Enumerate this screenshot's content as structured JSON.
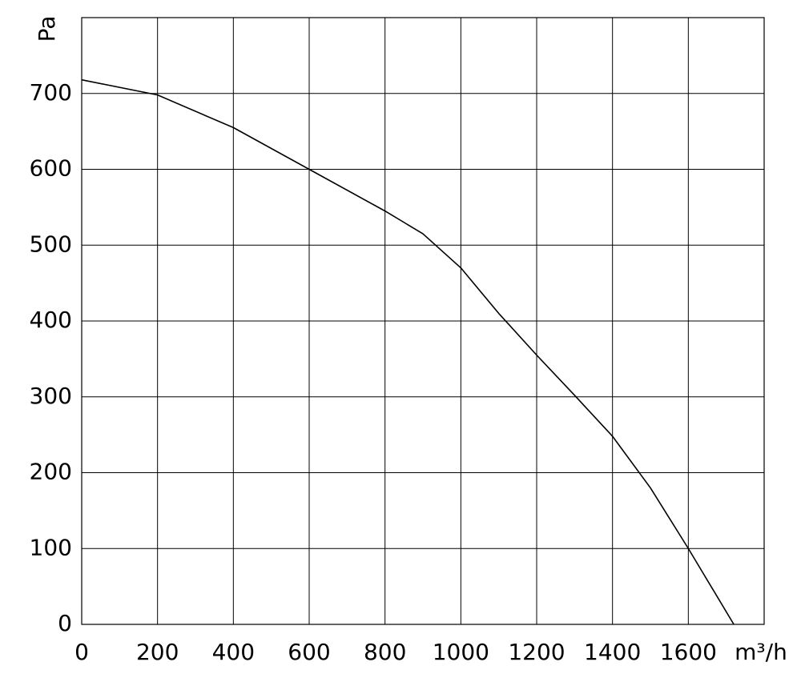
{
  "chart_data": {
    "type": "line",
    "y_label": "Pa",
    "x_label": "m³/h",
    "x": [
      0,
      200,
      400,
      600,
      800,
      900,
      1000,
      1100,
      1200,
      1300,
      1400,
      1500,
      1600,
      1720
    ],
    "series": [
      {
        "color": "#000000",
        "values": [
          718,
          698,
          655,
          600,
          545,
          515,
          470,
          410,
          355,
          302,
          248,
          180,
          100,
          0
        ]
      }
    ],
    "xlim": [
      0,
      1800
    ],
    "ylim": [
      0,
      800
    ],
    "xticks": [
      0,
      200,
      400,
      600,
      800,
      1000,
      1200,
      1400,
      1600
    ],
    "yticks": [
      0,
      100,
      200,
      300,
      400,
      500,
      600,
      700
    ],
    "grid": true
  }
}
